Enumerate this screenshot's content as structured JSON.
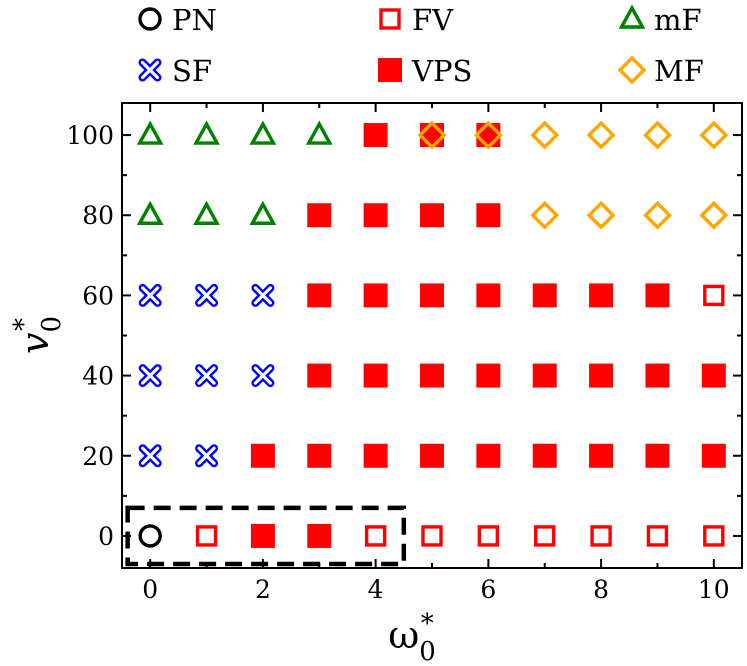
{
  "chart_data": {
    "type": "scatter",
    "xlabel": "ω",
    "xlabel_sub": "0",
    "xlabel_sup": "*",
    "ylabel": "v",
    "ylabel_sub": "0",
    "ylabel_sup": "*",
    "xlim": [
      -0.5,
      10.5
    ],
    "ylim": [
      -8,
      108
    ],
    "xticks": [
      0,
      2,
      4,
      6,
      8,
      10
    ],
    "yticks": [
      0,
      20,
      40,
      60,
      80,
      100
    ],
    "xtick_labels": [
      "0",
      "2",
      "4",
      "6",
      "8",
      "10"
    ],
    "ytick_labels": [
      "0",
      "20",
      "40",
      "60",
      "80",
      "100"
    ],
    "legend_position": "top",
    "colors": {
      "PN": "#000000",
      "FV": "#ff0000",
      "mF": "#008000",
      "SF": "#0000ff",
      "VPS": "#ff0000",
      "MF": "#ffa500",
      "box": "#000000"
    },
    "series": [
      {
        "name": "PN",
        "marker": "open-circle",
        "points": [
          [
            0,
            0
          ]
        ]
      },
      {
        "name": "FV",
        "marker": "open-square",
        "points": [
          [
            1,
            0
          ],
          [
            4,
            0
          ],
          [
            5,
            0
          ],
          [
            6,
            0
          ],
          [
            7,
            0
          ],
          [
            8,
            0
          ],
          [
            9,
            0
          ],
          [
            10,
            0
          ],
          [
            10,
            60
          ]
        ]
      },
      {
        "name": "mF",
        "marker": "open-triangle",
        "points": [
          [
            0,
            100
          ],
          [
            1,
            100
          ],
          [
            2,
            100
          ],
          [
            3,
            100
          ],
          [
            0,
            80
          ],
          [
            1,
            80
          ],
          [
            2,
            80
          ]
        ]
      },
      {
        "name": "SF",
        "marker": "x-cross",
        "points": [
          [
            0,
            60
          ],
          [
            1,
            60
          ],
          [
            2,
            60
          ],
          [
            0,
            40
          ],
          [
            1,
            40
          ],
          [
            2,
            40
          ],
          [
            0,
            20
          ],
          [
            1,
            20
          ]
        ]
      },
      {
        "name": "VPS",
        "marker": "filled-square",
        "points": [
          [
            4,
            100
          ],
          [
            5,
            100
          ],
          [
            6,
            100
          ],
          [
            3,
            80
          ],
          [
            4,
            80
          ],
          [
            5,
            80
          ],
          [
            6,
            80
          ],
          [
            3,
            60
          ],
          [
            4,
            60
          ],
          [
            5,
            60
          ],
          [
            6,
            60
          ],
          [
            7,
            60
          ],
          [
            8,
            60
          ],
          [
            9,
            60
          ],
          [
            3,
            40
          ],
          [
            4,
            40
          ],
          [
            5,
            40
          ],
          [
            6,
            40
          ],
          [
            7,
            40
          ],
          [
            8,
            40
          ],
          [
            9,
            40
          ],
          [
            10,
            40
          ],
          [
            2,
            20
          ],
          [
            3,
            20
          ],
          [
            4,
            20
          ],
          [
            5,
            20
          ],
          [
            6,
            20
          ],
          [
            7,
            20
          ],
          [
            8,
            20
          ],
          [
            9,
            20
          ],
          [
            10,
            20
          ],
          [
            2,
            0
          ],
          [
            3,
            0
          ]
        ]
      },
      {
        "name": "MF",
        "marker": "open-diamond",
        "points": [
          [
            5,
            100
          ],
          [
            6,
            100
          ],
          [
            7,
            100
          ],
          [
            8,
            100
          ],
          [
            9,
            100
          ],
          [
            10,
            100
          ],
          [
            7,
            80
          ],
          [
            8,
            80
          ],
          [
            9,
            80
          ],
          [
            10,
            80
          ]
        ]
      }
    ],
    "legend": [
      {
        "label": "PN",
        "marker": "open-circle",
        "series": "PN"
      },
      {
        "label": "FV",
        "marker": "open-square",
        "series": "FV"
      },
      {
        "label": "mF",
        "marker": "open-triangle",
        "series": "mF"
      },
      {
        "label": "SF",
        "marker": "x-cross",
        "series": "SF"
      },
      {
        "label": "VPS",
        "marker": "filled-square",
        "series": "VPS"
      },
      {
        "label": "MF",
        "marker": "open-diamond",
        "series": "MF"
      }
    ],
    "annotations": [
      {
        "type": "dashed-box",
        "x_range": [
          -0.4,
          4.5
        ],
        "y_range": [
          -7,
          7
        ]
      }
    ]
  }
}
